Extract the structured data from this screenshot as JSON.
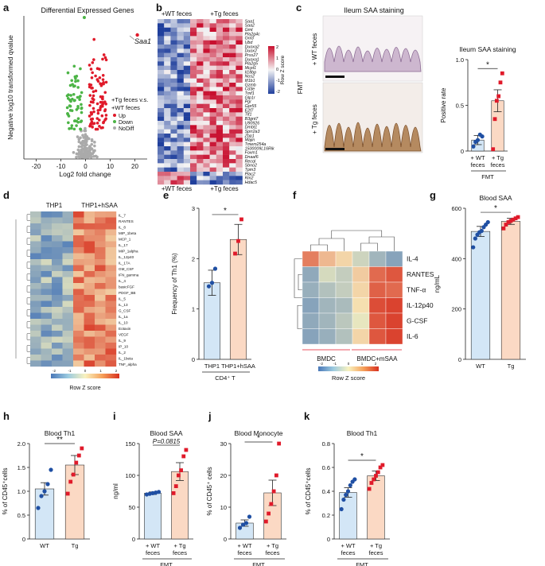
{
  "panels": {
    "a": "a",
    "b": "b",
    "c": "c",
    "d": "d",
    "e": "e",
    "f": "f",
    "g": "g",
    "h": "h",
    "i": "i",
    "j": "j",
    "k": "k"
  },
  "colors": {
    "wt": "#1f4fa3",
    "tg": "#e01a2a",
    "wt_fill": "#d3e6f6",
    "tg_fill": "#fbd9c4",
    "green": "#4cb446"
  },
  "volcano": {
    "title": "Differential Expressed Genes",
    "xlabel": "Log2 fold change",
    "ylabel": "Negative log10 transformed qvalue",
    "xticks": [
      "-20",
      "-10",
      "0",
      "10",
      "20"
    ],
    "label": "Saa1",
    "legend_title": [
      "+Tg feces v.s.",
      "+WT feces"
    ],
    "legend": [
      "Up",
      "Down",
      "NoDiff"
    ]
  },
  "heatmap_b": {
    "group1": "+WT feces",
    "group2": "+Tg feces",
    "genes": [
      "Saa1",
      "Saa2",
      "Gmt",
      "Pla2g4c",
      "Gnl3",
      "Ubd",
      "Duoxa2",
      "Duox2",
      "Prss27",
      "Duoxa1",
      "Pla2g5",
      "Mcpt1",
      "Il18bp",
      "Nos2",
      "Ifi1b1",
      "Gzmb",
      "Cd3e",
      "Tmf1",
      "Glp1r",
      "Pgr",
      "Gpr55",
      "E2f7",
      "Tlf1",
      "B3gnt7",
      "U90926",
      "Dmbt1",
      "Sprr2a3",
      "Zbp1",
      "Majin",
      "Tmem254a",
      "1500009L16Rik",
      "Foxm1",
      "Dnaaf6",
      "Recql",
      "Sbno2",
      "Tpm3",
      "Plac2",
      "Rin2",
      "Hdac5"
    ],
    "colorbar_label": "Row Z score",
    "colorbar_ticks": [
      "2",
      "1",
      "0",
      "-1",
      "-2"
    ]
  },
  "staining": {
    "title": "Ileum SAA staining",
    "row1": "+ WT feces",
    "row2": "+ Tg feces",
    "side": "FMT"
  },
  "heatmap_d": {
    "group1": "THP1",
    "group2": "THP1+hSAA",
    "genes": [
      "IL_7",
      "RANTES",
      "IL_8",
      "MIP_1beta",
      "MCP_1",
      "IL_17",
      "MIP_1alpha",
      "IL_12p40",
      "IL_17A",
      "GM_CSF",
      "IFN_gamma",
      "IL_4",
      "basicFGF",
      "PDGF_BB",
      "IL_5",
      "IL_13",
      "G_CSF",
      "IL_1a",
      "IL_10",
      "Eotaxin",
      "VEGF",
      "IL_9",
      "IP_10",
      "IL_2",
      "IL_1beta",
      "TNF_alpha"
    ],
    "colorbar_label": "Row Z score",
    "colorbar_ticks": [
      "-2",
      "-1",
      "0",
      "1",
      "2"
    ]
  },
  "heatmap_f": {
    "rows": [
      "IL-4",
      "RANTES",
      "TNF-α",
      "IL-12p40",
      "G-CSF",
      "IL-6"
    ],
    "group1": "BMDC",
    "group2": "BMDC+mSAA",
    "colorbar_label": "Row Z score",
    "colorbar_ticks": [
      "-2",
      "-1",
      "0",
      "1",
      "2"
    ]
  },
  "chart_data": [
    {
      "panel": "c",
      "type": "bar",
      "title": "Ileum SAA staining",
      "ylabel": "Positive rate",
      "categories": [
        "+ WT feces",
        "+ Tg feces"
      ],
      "xgroup": "FMT",
      "values": [
        0.12,
        0.55
      ],
      "errors": [
        0.05,
        0.12
      ],
      "ylim": [
        0,
        1.0
      ],
      "yticks": [
        "0",
        "0.5",
        "1.0"
      ],
      "significance": "*",
      "points": [
        [
          0.05,
          0.1,
          0.12,
          0.18,
          0.16
        ],
        [
          0.02,
          0.35,
          0.55,
          0.6,
          0.75,
          0.85
        ]
      ]
    },
    {
      "panel": "e",
      "type": "bar",
      "ylabel": "Frequency of Th1 (%)",
      "categories": [
        "THP1",
        "THP1+hSAA"
      ],
      "xgroup": "CD4⁺ T",
      "values": [
        1.52,
        2.38
      ],
      "errors": [
        0.25,
        0.3
      ],
      "ylim": [
        0,
        3
      ],
      "yticks": [
        "0",
        "1",
        "2",
        "3"
      ],
      "significance": "*",
      "points": [
        [
          1.45,
          1.52,
          1.8
        ],
        [
          2.1,
          2.35,
          2.78
        ]
      ]
    },
    {
      "panel": "g",
      "type": "bar",
      "title": "Blood SAA",
      "ylabel": "ng/mL",
      "categories": [
        "WT",
        "Tg"
      ],
      "values": [
        508,
        548
      ],
      "errors": [
        20,
        12
      ],
      "ylim": [
        0,
        600
      ],
      "yticks": [
        "0",
        "200",
        "400",
        "600"
      ],
      "significance": "*",
      "points": [
        [
          445,
          480,
          495,
          505,
          510,
          525,
          535,
          545
        ],
        [
          520,
          535,
          545,
          550,
          555,
          560,
          565
        ]
      ]
    },
    {
      "panel": "h",
      "type": "bar",
      "title": "Blood Th1",
      "ylabel": "% of CD45⁺cells",
      "categories": [
        "WT",
        "Tg"
      ],
      "values": [
        1.05,
        1.55
      ],
      "errors": [
        0.13,
        0.2
      ],
      "ylim": [
        0,
        2.0
      ],
      "yticks": [
        "0",
        "0.5",
        "1.0",
        "1.5",
        "2.0"
      ],
      "significance": "**",
      "points": [
        [
          0.65,
          0.9,
          1.0,
          1.15,
          1.45
        ],
        [
          0.95,
          1.2,
          1.35,
          1.6,
          1.75,
          1.9
        ]
      ]
    },
    {
      "panel": "i",
      "type": "bar",
      "title": "Blood SAA",
      "ylabel": "ng/ml",
      "categories": [
        "+ WT feces",
        "+ Tg feces"
      ],
      "xgroup": "FMT",
      "values": [
        72,
        106
      ],
      "errors": [
        2,
        14
      ],
      "ylim": [
        0,
        150
      ],
      "yticks": [
        "0",
        "50",
        "100",
        "150"
      ],
      "significance": "P=0.0815",
      "points": [
        [
          70,
          71,
          72,
          73,
          74
        ],
        [
          72,
          83,
          100,
          108,
          130,
          140
        ]
      ]
    },
    {
      "panel": "j",
      "type": "bar",
      "title": "Blood Monocyte",
      "ylabel": "% of CD45⁺ cells",
      "categories": [
        "+ WT feces",
        "+ Tg feces"
      ],
      "xgroup": "FMT",
      "values": [
        5.0,
        14.5
      ],
      "errors": [
        1.0,
        4.0
      ],
      "ylim": [
        0,
        30
      ],
      "yticks": [
        "0",
        "10",
        "20",
        "30"
      ],
      "significance": "*",
      "points": [
        [
          3.5,
          4.5,
          5.0,
          7.0
        ],
        [
          5.5,
          8.0,
          11.0,
          15.0,
          20.0,
          30.0
        ]
      ]
    },
    {
      "panel": "k",
      "type": "bar",
      "title": "Blood Th1",
      "ylabel": "% of CD45⁺cells",
      "categories": [
        "+ WT feces",
        "+ Tg feces"
      ],
      "xgroup": "FMT",
      "values": [
        0.39,
        0.53
      ],
      "errors": [
        0.04,
        0.04
      ],
      "ylim": [
        0,
        0.8
      ],
      "yticks": [
        "0",
        "0.2",
        "0.4",
        "0.6",
        "0.8"
      ],
      "significance": "*",
      "points": [
        [
          0.25,
          0.33,
          0.37,
          0.4,
          0.45,
          0.48,
          0.5
        ],
        [
          0.42,
          0.47,
          0.5,
          0.53,
          0.56,
          0.6,
          0.62
        ]
      ]
    }
  ]
}
